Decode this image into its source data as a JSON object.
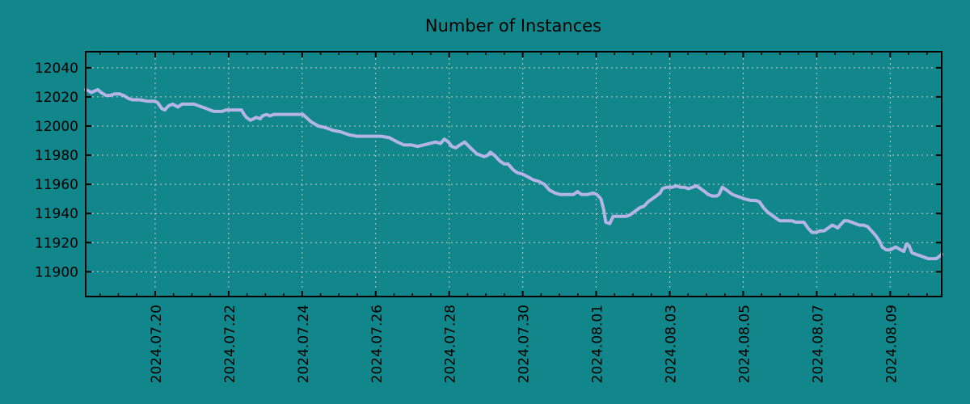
{
  "chart_data": {
    "type": "line",
    "title": "Number of Instances",
    "xlabel": "",
    "ylabel": "",
    "legend": "none",
    "grid": true,
    "x_unit": "days since 2024-07-18 00:00 (x tick labels show calendar dates)",
    "x_domain": [
      0.11,
      23.4
    ],
    "y_domain": [
      11883,
      12051
    ],
    "x_ticks": [
      {
        "t": 2,
        "label": "2024.07.20"
      },
      {
        "t": 4,
        "label": "2024.07.22"
      },
      {
        "t": 6,
        "label": "2024.07.24"
      },
      {
        "t": 8,
        "label": "2024.07.26"
      },
      {
        "t": 10,
        "label": "2024.07.28"
      },
      {
        "t": 12,
        "label": "2024.07.30"
      },
      {
        "t": 14,
        "label": "2024.08.01"
      },
      {
        "t": 16,
        "label": "2024.08.03"
      },
      {
        "t": 18,
        "label": "2024.08.05"
      },
      {
        "t": 20,
        "label": "2024.08.07"
      },
      {
        "t": 22,
        "label": "2024.08.09"
      }
    ],
    "x_minor_tick_step": 0.5,
    "y_ticks": [
      11900,
      11920,
      11940,
      11960,
      11980,
      12000,
      12020,
      12040
    ],
    "colors": {
      "background": "#11878b",
      "line": "#b4b4e6",
      "grid": "#c9c9c9",
      "axis": "#000000",
      "text": "#000000"
    },
    "series": [
      {
        "name": "instances",
        "points": [
          [
            0.11,
            12025
          ],
          [
            0.2,
            12024
          ],
          [
            0.26,
            12023
          ],
          [
            0.35,
            12024
          ],
          [
            0.44,
            12025
          ],
          [
            0.53,
            12023
          ],
          [
            0.66,
            12021
          ],
          [
            0.77,
            12021
          ],
          [
            0.9,
            12022
          ],
          [
            1.03,
            12022
          ],
          [
            1.14,
            12021
          ],
          [
            1.27,
            12019
          ],
          [
            1.38,
            12018
          ],
          [
            1.58,
            12018
          ],
          [
            1.8,
            12017
          ],
          [
            2.0,
            12017
          ],
          [
            2.07,
            12016
          ],
          [
            2.18,
            12012
          ],
          [
            2.26,
            12011
          ],
          [
            2.37,
            12014
          ],
          [
            2.48,
            12015
          ],
          [
            2.62,
            12013
          ],
          [
            2.73,
            12015
          ],
          [
            2.84,
            12015
          ],
          [
            2.95,
            12015
          ],
          [
            3.06,
            12015
          ],
          [
            3.17,
            12014
          ],
          [
            3.28,
            12013
          ],
          [
            3.39,
            12012
          ],
          [
            3.49,
            12011
          ],
          [
            3.6,
            12010
          ],
          [
            3.71,
            12010
          ],
          [
            3.82,
            12010
          ],
          [
            3.93,
            12011
          ],
          [
            4.04,
            12011
          ],
          [
            4.15,
            12011
          ],
          [
            4.26,
            12011
          ],
          [
            4.35,
            12011
          ],
          [
            4.42,
            12008
          ],
          [
            4.48,
            12006
          ],
          [
            4.59,
            12004
          ],
          [
            4.68,
            12005
          ],
          [
            4.75,
            12006
          ],
          [
            4.86,
            12005
          ],
          [
            4.92,
            12007
          ],
          [
            5.03,
            12008
          ],
          [
            5.12,
            12007
          ],
          [
            5.23,
            12008
          ],
          [
            5.3,
            12008
          ],
          [
            5.41,
            12008
          ],
          [
            5.52,
            12008
          ],
          [
            5.74,
            12008
          ],
          [
            5.89,
            12008
          ],
          [
            6.02,
            12008
          ],
          [
            6.24,
            12003
          ],
          [
            6.44,
            12000
          ],
          [
            6.62,
            11999
          ],
          [
            6.84,
            11997
          ],
          [
            7.05,
            11996
          ],
          [
            7.27,
            11994
          ],
          [
            7.49,
            11993
          ],
          [
            7.67,
            11993
          ],
          [
            7.82,
            11993
          ],
          [
            8.0,
            11993
          ],
          [
            8.15,
            11993
          ],
          [
            8.37,
            11992
          ],
          [
            8.59,
            11989
          ],
          [
            8.77,
            11987
          ],
          [
            8.97,
            11987
          ],
          [
            9.14,
            11986
          ],
          [
            9.3,
            11987
          ],
          [
            9.47,
            11988
          ],
          [
            9.63,
            11989
          ],
          [
            9.76,
            11988
          ],
          [
            9.87,
            11991
          ],
          [
            9.98,
            11989
          ],
          [
            10.07,
            11986
          ],
          [
            10.18,
            11985
          ],
          [
            10.29,
            11987
          ],
          [
            10.42,
            11989
          ],
          [
            10.62,
            11984
          ],
          [
            10.75,
            11981
          ],
          [
            10.95,
            11979
          ],
          [
            11.05,
            11980
          ],
          [
            11.12,
            11982
          ],
          [
            11.23,
            11980
          ],
          [
            11.38,
            11976
          ],
          [
            11.49,
            11974
          ],
          [
            11.6,
            11974
          ],
          [
            11.74,
            11970
          ],
          [
            11.85,
            11968
          ],
          [
            12.0,
            11967
          ],
          [
            12.15,
            11965
          ],
          [
            12.29,
            11963
          ],
          [
            12.44,
            11962
          ],
          [
            12.59,
            11960
          ],
          [
            12.73,
            11956
          ],
          [
            12.88,
            11954
          ],
          [
            13.03,
            11953
          ],
          [
            13.25,
            11953
          ],
          [
            13.38,
            11953
          ],
          [
            13.49,
            11955
          ],
          [
            13.6,
            11953
          ],
          [
            13.76,
            11953
          ],
          [
            13.91,
            11954
          ],
          [
            14.02,
            11953
          ],
          [
            14.13,
            11950
          ],
          [
            14.2,
            11943
          ],
          [
            14.26,
            11934
          ],
          [
            14.37,
            11933
          ],
          [
            14.46,
            11938
          ],
          [
            14.59,
            11938
          ],
          [
            14.81,
            11938
          ],
          [
            14.92,
            11939
          ],
          [
            15.08,
            11942
          ],
          [
            15.19,
            11944
          ],
          [
            15.3,
            11945
          ],
          [
            15.41,
            11948
          ],
          [
            15.52,
            11950
          ],
          [
            15.63,
            11952
          ],
          [
            15.74,
            11954
          ],
          [
            15.8,
            11957
          ],
          [
            15.91,
            11958
          ],
          [
            16.07,
            11958
          ],
          [
            16.18,
            11959
          ],
          [
            16.29,
            11958
          ],
          [
            16.4,
            11958
          ],
          [
            16.51,
            11957
          ],
          [
            16.62,
            11958
          ],
          [
            16.73,
            11959
          ],
          [
            16.84,
            11957
          ],
          [
            16.95,
            11955
          ],
          [
            17.05,
            11953
          ],
          [
            17.16,
            11952
          ],
          [
            17.27,
            11952
          ],
          [
            17.34,
            11953
          ],
          [
            17.43,
            11958
          ],
          [
            17.49,
            11957
          ],
          [
            17.6,
            11955
          ],
          [
            17.71,
            11953
          ],
          [
            17.82,
            11952
          ],
          [
            17.93,
            11951
          ],
          [
            18.04,
            11950
          ],
          [
            18.2,
            11949
          ],
          [
            18.33,
            11949
          ],
          [
            18.44,
            11948
          ],
          [
            18.55,
            11944
          ],
          [
            18.66,
            11941
          ],
          [
            18.77,
            11939
          ],
          [
            18.88,
            11937
          ],
          [
            18.99,
            11935
          ],
          [
            19.1,
            11935
          ],
          [
            19.21,
            11935
          ],
          [
            19.32,
            11935
          ],
          [
            19.43,
            11934
          ],
          [
            19.54,
            11934
          ],
          [
            19.65,
            11934
          ],
          [
            19.76,
            11930
          ],
          [
            19.87,
            11927
          ],
          [
            19.98,
            11927
          ],
          [
            20.09,
            11928
          ],
          [
            20.2,
            11928
          ],
          [
            20.31,
            11930
          ],
          [
            20.42,
            11932
          ],
          [
            20.51,
            11931
          ],
          [
            20.57,
            11930
          ],
          [
            20.64,
            11932
          ],
          [
            20.75,
            11935
          ],
          [
            20.84,
            11935
          ],
          [
            20.95,
            11934
          ],
          [
            21.05,
            11933
          ],
          [
            21.16,
            11932
          ],
          [
            21.27,
            11932
          ],
          [
            21.38,
            11931
          ],
          [
            21.49,
            11928
          ],
          [
            21.6,
            11925
          ],
          [
            21.71,
            11921
          ],
          [
            21.78,
            11917
          ],
          [
            21.89,
            11915
          ],
          [
            22.0,
            11915
          ],
          [
            22.07,
            11916
          ],
          [
            22.15,
            11917
          ],
          [
            22.22,
            11916
          ],
          [
            22.29,
            11915
          ],
          [
            22.37,
            11914
          ],
          [
            22.44,
            11919
          ],
          [
            22.51,
            11918
          ],
          [
            22.59,
            11913
          ],
          [
            22.7,
            11912
          ],
          [
            22.81,
            11911
          ],
          [
            22.92,
            11910
          ],
          [
            23.03,
            11909
          ],
          [
            23.14,
            11909
          ],
          [
            23.25,
            11909
          ],
          [
            23.36,
            11911
          ],
          [
            23.4,
            11912
          ]
        ]
      }
    ]
  }
}
